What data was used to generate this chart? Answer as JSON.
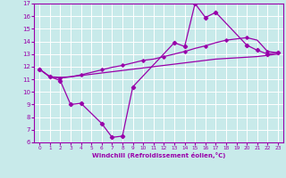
{
  "xlabel": "Windchill (Refroidissement éolien,°C)",
  "bg_color": "#c8eaea",
  "line_color": "#9900aa",
  "xlim": [
    -0.5,
    23.5
  ],
  "ylim": [
    6,
    17
  ],
  "xticks": [
    0,
    1,
    2,
    3,
    4,
    5,
    6,
    7,
    8,
    9,
    10,
    11,
    12,
    13,
    14,
    15,
    16,
    17,
    18,
    19,
    20,
    21,
    22,
    23
  ],
  "yticks": [
    6,
    7,
    8,
    9,
    10,
    11,
    12,
    13,
    14,
    15,
    16,
    17
  ],
  "grid_color": "#ffffff",
  "zigzag_x": [
    0,
    1,
    2,
    3,
    4,
    6,
    7,
    8,
    9,
    13,
    14,
    15,
    16,
    17,
    20,
    21,
    22,
    23
  ],
  "zigzag_y": [
    11.8,
    11.2,
    10.9,
    9.0,
    9.1,
    7.5,
    6.4,
    6.5,
    10.4,
    13.9,
    13.6,
    17.0,
    15.9,
    16.3,
    13.7,
    13.3,
    13.0,
    13.1
  ],
  "line_bottom_x": [
    0,
    1,
    2,
    3,
    4,
    5,
    6,
    7,
    8,
    9,
    10,
    11,
    12,
    13,
    14,
    15,
    16,
    17,
    18,
    19,
    20,
    21,
    22,
    23
  ],
  "line_bottom_y": [
    11.8,
    11.2,
    11.15,
    11.2,
    11.3,
    11.4,
    11.5,
    11.6,
    11.7,
    11.8,
    11.9,
    12.0,
    12.1,
    12.2,
    12.3,
    12.4,
    12.5,
    12.6,
    12.65,
    12.7,
    12.75,
    12.8,
    12.9,
    13.0
  ],
  "line_top_x": [
    0,
    1,
    2,
    3,
    4,
    5,
    6,
    7,
    8,
    9,
    10,
    11,
    12,
    13,
    14,
    15,
    16,
    17,
    18,
    19,
    20,
    21,
    22,
    23
  ],
  "line_top_y": [
    11.8,
    11.2,
    11.1,
    11.2,
    11.35,
    11.55,
    11.75,
    11.95,
    12.1,
    12.3,
    12.5,
    12.6,
    12.8,
    13.0,
    13.2,
    13.45,
    13.65,
    13.9,
    14.1,
    14.2,
    14.3,
    14.1,
    13.2,
    13.1
  ]
}
